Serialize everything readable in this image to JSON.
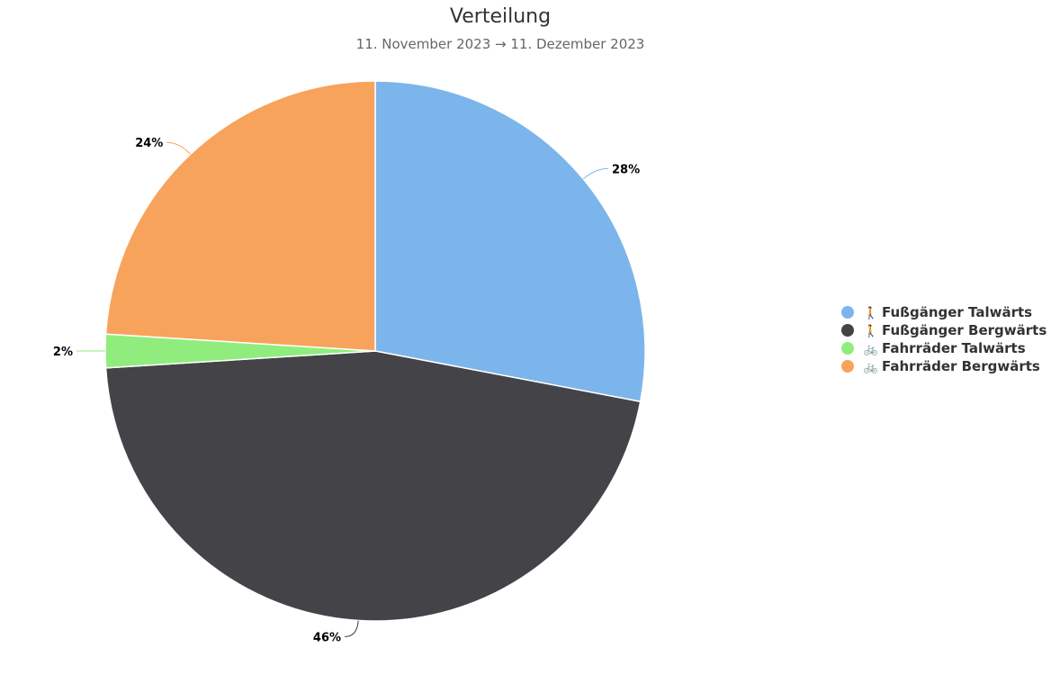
{
  "chart_data": {
    "type": "pie",
    "title": "Verteilung",
    "subtitle": "11. November 2023 → 11. Dezember 2023",
    "slices": [
      {
        "name": "Fußgänger Talwärts",
        "value": 28,
        "label": "28%",
        "color": "#7cb5ec",
        "icon": "pedestrian-icon",
        "glyph": "🚶"
      },
      {
        "name": "Fußgänger Bergwärts",
        "value": 46,
        "label": "46%",
        "color": "#434348",
        "icon": "pedestrian-icon",
        "glyph": "🚶"
      },
      {
        "name": "Fahrräder Talwärts",
        "value": 2,
        "label": "2%",
        "color": "#90ed7d",
        "icon": "bicycle-icon",
        "glyph": "🚲"
      },
      {
        "name": "Fahrräder Bergwärts",
        "value": 24,
        "label": "24%",
        "color": "#f7a35c",
        "icon": "bicycle-icon",
        "glyph": "🚲"
      }
    ],
    "legend_position": "right",
    "start_angle": "top",
    "direction": "clockwise"
  }
}
